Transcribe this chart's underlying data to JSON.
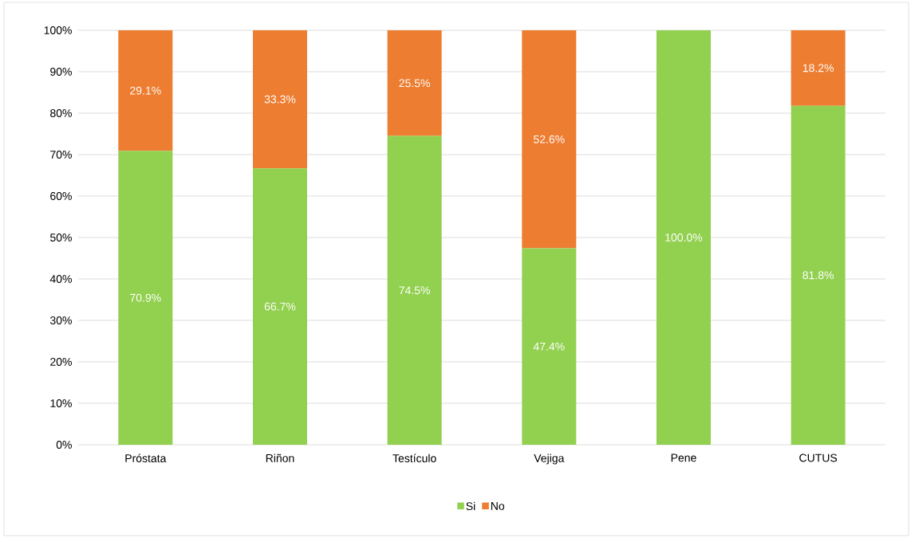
{
  "chart_data": {
    "type": "bar",
    "stacked": true,
    "categories": [
      "Próstata",
      "Riñon",
      "Testículo",
      "Vejiga",
      "Pene",
      "CUTUS"
    ],
    "series": [
      {
        "name": "Si",
        "color": "#92d050",
        "values": [
          70.9,
          66.7,
          74.5,
          47.4,
          100.0,
          81.8
        ],
        "value_labels": [
          "70.9%",
          "66.7%",
          "74.5%",
          "47.4%",
          "100.0%",
          "81.8%"
        ]
      },
      {
        "name": "No",
        "color": "#ed7d31",
        "values": [
          29.1,
          33.3,
          25.5,
          52.6,
          0,
          18.2
        ],
        "value_labels": [
          "29.1%",
          "33.3%",
          "25.5%",
          "52.6%",
          null,
          "18.2%"
        ]
      }
    ],
    "ylim": [
      0,
      100
    ],
    "yticks": [
      {
        "value": 0,
        "label": "0%"
      },
      {
        "value": 10,
        "label": "10%"
      },
      {
        "value": 20,
        "label": "20%"
      },
      {
        "value": 30,
        "label": "30%"
      },
      {
        "value": 40,
        "label": "40%"
      },
      {
        "value": 50,
        "label": "50%"
      },
      {
        "value": 60,
        "label": "60%"
      },
      {
        "value": 70,
        "label": "70%"
      },
      {
        "value": 80,
        "label": "80%"
      },
      {
        "value": 90,
        "label": "90%"
      },
      {
        "value": 100,
        "label": "100%"
      }
    ],
    "grid": "y",
    "legend": "bottom"
  }
}
